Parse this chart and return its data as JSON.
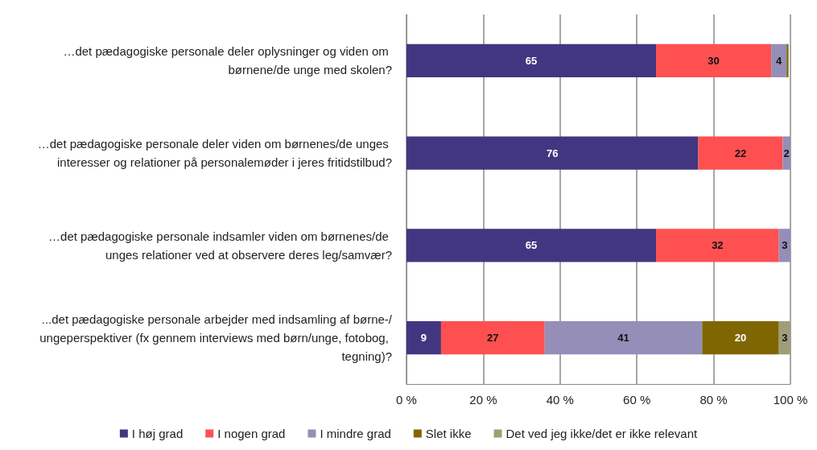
{
  "chart_data": {
    "type": "bar",
    "orientation": "horizontal",
    "stacked": true,
    "categories": [
      "…det pædagogiske personale deler oplysninger og viden om børnene/de unge med skolen?",
      "…det pædagogiske personale deler viden om børnenes/de unges interesser og relationer på personalemøder i jeres fritidstilbud?",
      "…det pædagogiske personale indsamler viden om børnenes/de unges relationer ved at observere deres leg/samvær?",
      "...det pædagogiske personale arbejder med indsamling af børne-/ungeperspektiver (fx gennem interviews med børn/unge, fotobog, tegning)?"
    ],
    "series": [
      {
        "name": "I høj grad",
        "color": "#433681",
        "values": [
          65,
          76,
          65,
          9
        ]
      },
      {
        "name": "I nogen grad",
        "color": "#fe5050",
        "values": [
          30,
          22,
          32,
          27
        ]
      },
      {
        "name": "I mindre grad",
        "color": "#948eb8",
        "values": [
          4,
          2,
          3,
          41
        ],
        "value_labels": [
          "4",
          "2",
          "3",
          "41"
        ]
      },
      {
        "name": "Slet ikke",
        "color": "#7f6602",
        "values": [
          0.5,
          0,
          0.4,
          20
        ],
        "value_labels": [
          null,
          null,
          null,
          "20"
        ]
      },
      {
        "name": "Det ved jeg ikke/det er ikke relevant",
        "color": "#9e9e78",
        "values": [
          0,
          0,
          0,
          3
        ],
        "value_labels": [
          null,
          null,
          null,
          "3"
        ]
      }
    ],
    "xlim": [
      0,
      100
    ],
    "xticks": [
      {
        "value": 0,
        "label": "0 %"
      },
      {
        "value": 20,
        "label": "20 %"
      },
      {
        "value": 40,
        "label": "40 %"
      },
      {
        "value": 60,
        "label": "60 %"
      },
      {
        "value": 80,
        "label": "80 %"
      },
      {
        "value": 100,
        "label": "100 %"
      }
    ],
    "grid": "x",
    "data_labels": true,
    "legend": "bottom"
  }
}
